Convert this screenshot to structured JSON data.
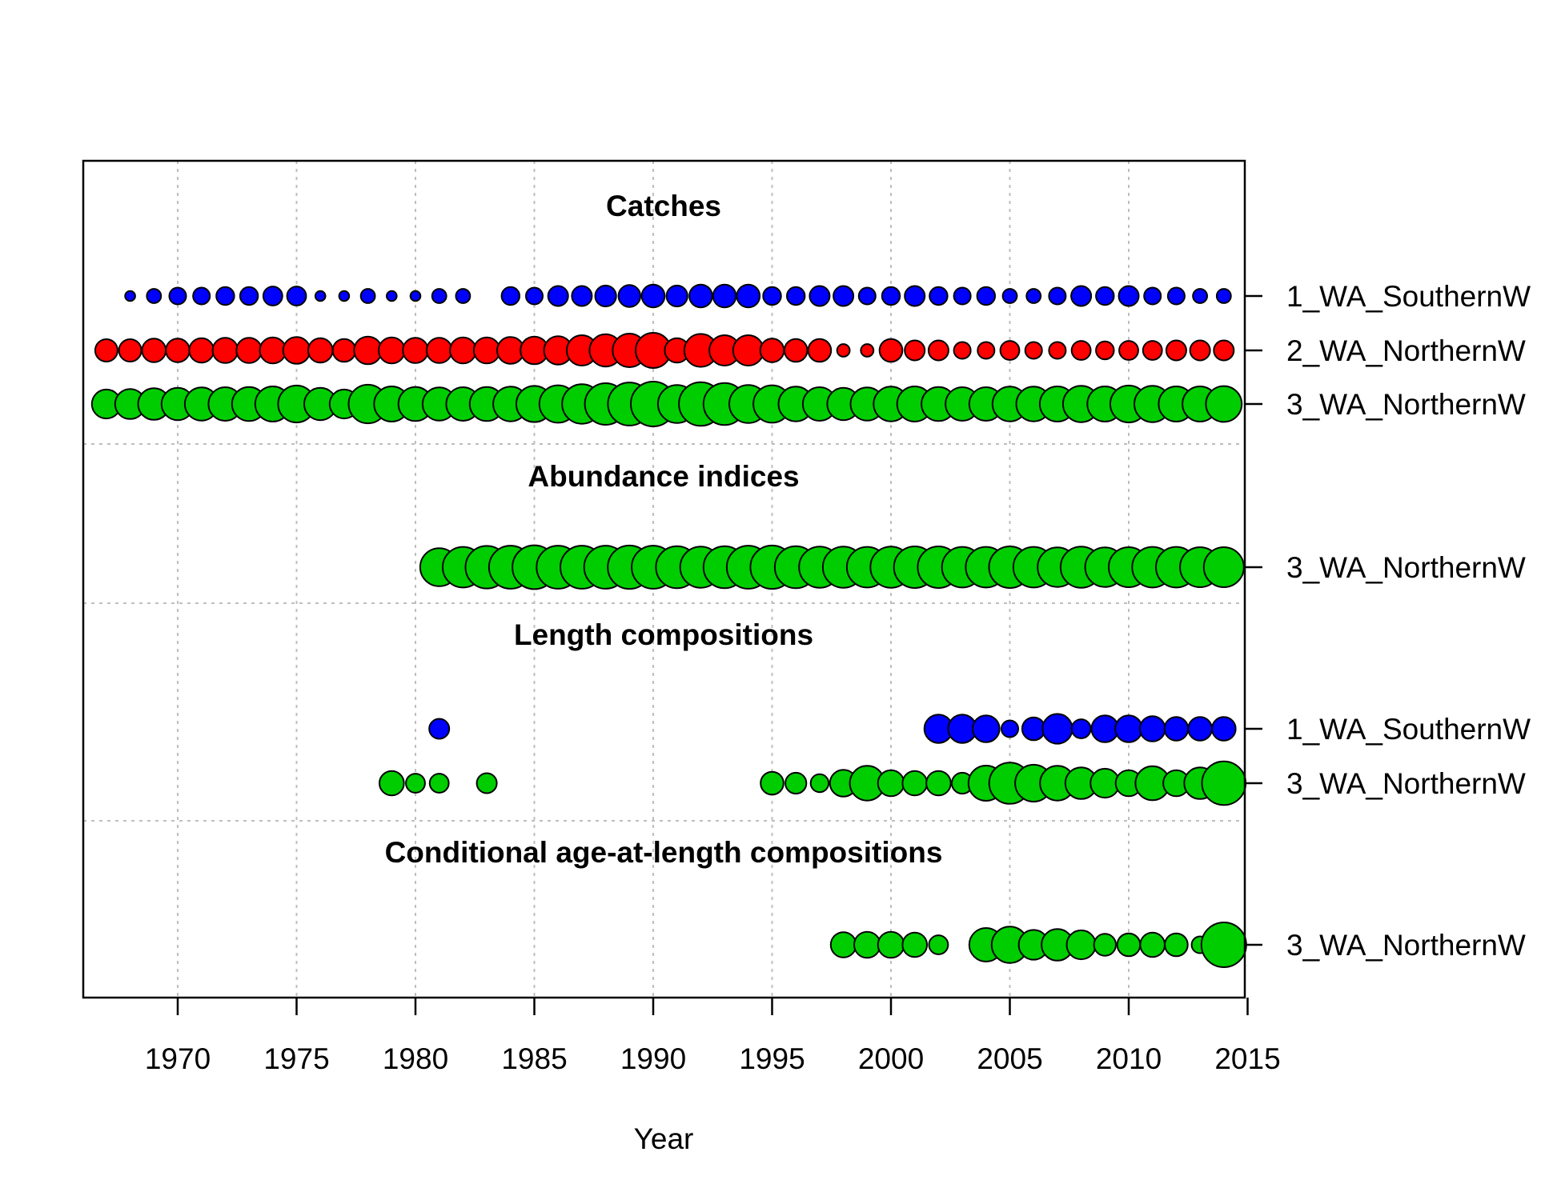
{
  "chart_data": {
    "type": "scatter",
    "xlabel": "Year",
    "xlim": [
      1966,
      2015
    ],
    "xticks": [
      1970,
      1975,
      1980,
      1985,
      1990,
      1995,
      2000,
      2005,
      2010,
      2015
    ],
    "grid": true,
    "colors": {
      "1_WA_SouthernWA": "#0000ff",
      "2_WA_NorthernWA": "#ff0000",
      "3_WA_NorthernWA": "#00cd00"
    },
    "groups": [
      {
        "title": "Catches",
        "series": [
          {
            "fleet": "1_WA_SouthernW",
            "color": "#0000ff",
            "x": [
              1968,
              1969,
              1970,
              1971,
              1972,
              1973,
              1974,
              1975,
              1976,
              1977,
              1978,
              1979,
              1980,
              1981,
              1982,
              1984,
              1985,
              1986,
              1987,
              1988,
              1989,
              1990,
              1991,
              1992,
              1993,
              1994,
              1995,
              1996,
              1997,
              1998,
              1999,
              2000,
              2001,
              2002,
              2003,
              2004,
              2005,
              2006,
              2007,
              2008,
              2009,
              2010,
              2011,
              2012,
              2013,
              2014
            ],
            "values": [
              0.05,
              0.1,
              0.14,
              0.14,
              0.16,
              0.16,
              0.18,
              0.18,
              0.05,
              0.05,
              0.1,
              0.05,
              0.05,
              0.1,
              0.1,
              0.16,
              0.14,
              0.2,
              0.2,
              0.22,
              0.24,
              0.26,
              0.22,
              0.26,
              0.26,
              0.26,
              0.16,
              0.16,
              0.2,
              0.2,
              0.14,
              0.16,
              0.2,
              0.16,
              0.14,
              0.16,
              0.1,
              0.1,
              0.14,
              0.2,
              0.16,
              0.2,
              0.14,
              0.14,
              0.1,
              0.1
            ]
          },
          {
            "fleet": "2_WA_NorthernW",
            "color": "#ff0000",
            "x": [
              1967,
              1968,
              1969,
              1970,
              1971,
              1972,
              1973,
              1974,
              1975,
              1976,
              1977,
              1978,
              1979,
              1980,
              1981,
              1982,
              1983,
              1984,
              1985,
              1986,
              1987,
              1988,
              1989,
              1990,
              1991,
              1992,
              1993,
              1994,
              1995,
              1996,
              1997,
              1998,
              1999,
              2000,
              2001,
              2002,
              2003,
              2004,
              2005,
              2006,
              2007,
              2008,
              2009,
              2010,
              2011,
              2012,
              2013,
              2014
            ],
            "values": [
              0.25,
              0.25,
              0.28,
              0.28,
              0.3,
              0.32,
              0.32,
              0.34,
              0.36,
              0.3,
              0.26,
              0.38,
              0.34,
              0.32,
              0.32,
              0.34,
              0.34,
              0.36,
              0.38,
              0.4,
              0.46,
              0.52,
              0.56,
              0.62,
              0.3,
              0.54,
              0.46,
              0.46,
              0.28,
              0.26,
              0.26,
              0.08,
              0.08,
              0.26,
              0.2,
              0.2,
              0.14,
              0.14,
              0.18,
              0.14,
              0.14,
              0.18,
              0.16,
              0.18,
              0.18,
              0.2,
              0.2,
              0.2
            ]
          },
          {
            "fleet": "3_WA_NorthernW",
            "color": "#00cd00",
            "x": [
              1967,
              1968,
              1969,
              1970,
              1971,
              1972,
              1973,
              1974,
              1975,
              1976,
              1977,
              1978,
              1979,
              1980,
              1981,
              1982,
              1983,
              1984,
              1985,
              1986,
              1987,
              1988,
              1989,
              1990,
              1991,
              1992,
              1993,
              1994,
              1995,
              1996,
              1997,
              1998,
              1999,
              2000,
              2001,
              2002,
              2003,
              2004,
              2005,
              2006,
              2007,
              2008,
              2009,
              2010,
              2011,
              2012,
              2013,
              2014
            ],
            "values": [
              0.42,
              0.45,
              0.5,
              0.52,
              0.55,
              0.56,
              0.58,
              0.62,
              0.68,
              0.52,
              0.42,
              0.74,
              0.62,
              0.58,
              0.55,
              0.56,
              0.58,
              0.6,
              0.65,
              0.7,
              0.78,
              0.86,
              0.92,
              1.0,
              0.72,
              0.95,
              0.88,
              0.72,
              0.7,
              0.6,
              0.56,
              0.52,
              0.55,
              0.6,
              0.62,
              0.58,
              0.56,
              0.56,
              0.6,
              0.6,
              0.62,
              0.66,
              0.62,
              0.68,
              0.66,
              0.62,
              0.62,
              0.64
            ]
          }
        ]
      },
      {
        "title": "Abundance indices",
        "series": [
          {
            "fleet": "3_WA_NorthernW",
            "color": "#00cd00",
            "x": [
              1981,
              1982,
              1983,
              1984,
              1985,
              1986,
              1987,
              1988,
              1989,
              1990,
              1991,
              1992,
              1993,
              1994,
              1995,
              1996,
              1997,
              1998,
              1999,
              2000,
              2001,
              2002,
              2003,
              2004,
              2005,
              2006,
              2007,
              2008,
              2009,
              2010,
              2011,
              2012,
              2013,
              2014
            ],
            "values": [
              0.72,
              0.82,
              0.9,
              0.92,
              0.96,
              0.92,
              0.92,
              0.92,
              0.94,
              0.92,
              0.88,
              0.84,
              0.88,
              0.92,
              0.94,
              0.88,
              0.84,
              0.84,
              0.82,
              0.84,
              0.86,
              0.86,
              0.82,
              0.82,
              0.86,
              0.82,
              0.78,
              0.84,
              0.78,
              0.8,
              0.82,
              0.82,
              0.8,
              0.8
            ]
          }
        ]
      },
      {
        "title": "Length compositions",
        "series": [
          {
            "fleet": "1_WA_SouthernW",
            "color": "#0000ff",
            "x": [
              1981,
              2002,
              2003,
              2004,
              2005,
              2006,
              2007,
              2008,
              2009,
              2010,
              2011,
              2012,
              2013,
              2014
            ],
            "values": [
              0.2,
              0.4,
              0.4,
              0.36,
              0.14,
              0.26,
              0.44,
              0.18,
              0.36,
              0.36,
              0.32,
              0.28,
              0.28,
              0.28
            ]
          },
          {
            "fleet": "3_WA_NorthernW",
            "color": "#00cd00",
            "x": [
              1979,
              1980,
              1981,
              1983,
              1995,
              1996,
              1997,
              1998,
              1999,
              2000,
              2001,
              2002,
              2003,
              2004,
              2005,
              2006,
              2007,
              2008,
              2009,
              2010,
              2011,
              2012,
              2013,
              2014
            ],
            "values": [
              0.3,
              0.18,
              0.18,
              0.2,
              0.26,
              0.22,
              0.16,
              0.36,
              0.6,
              0.34,
              0.3,
              0.3,
              0.22,
              0.62,
              0.85,
              0.68,
              0.6,
              0.5,
              0.42,
              0.34,
              0.58,
              0.34,
              0.5,
              0.95
            ]
          }
        ]
      },
      {
        "title": "Conditional age-at-length compositions",
        "series": [
          {
            "fleet": "3_WA_NorthernW",
            "color": "#00cd00",
            "x": [
              1998,
              1999,
              2000,
              2001,
              2002,
              2004,
              2005,
              2006,
              2007,
              2008,
              2009,
              2010,
              2011,
              2012,
              2013,
              2014
            ],
            "values": [
              0.32,
              0.34,
              0.34,
              0.3,
              0.18,
              0.56,
              0.66,
              0.44,
              0.5,
              0.42,
              0.24,
              0.26,
              0.3,
              0.26,
              0.14,
              1.0
            ]
          }
        ]
      }
    ]
  }
}
